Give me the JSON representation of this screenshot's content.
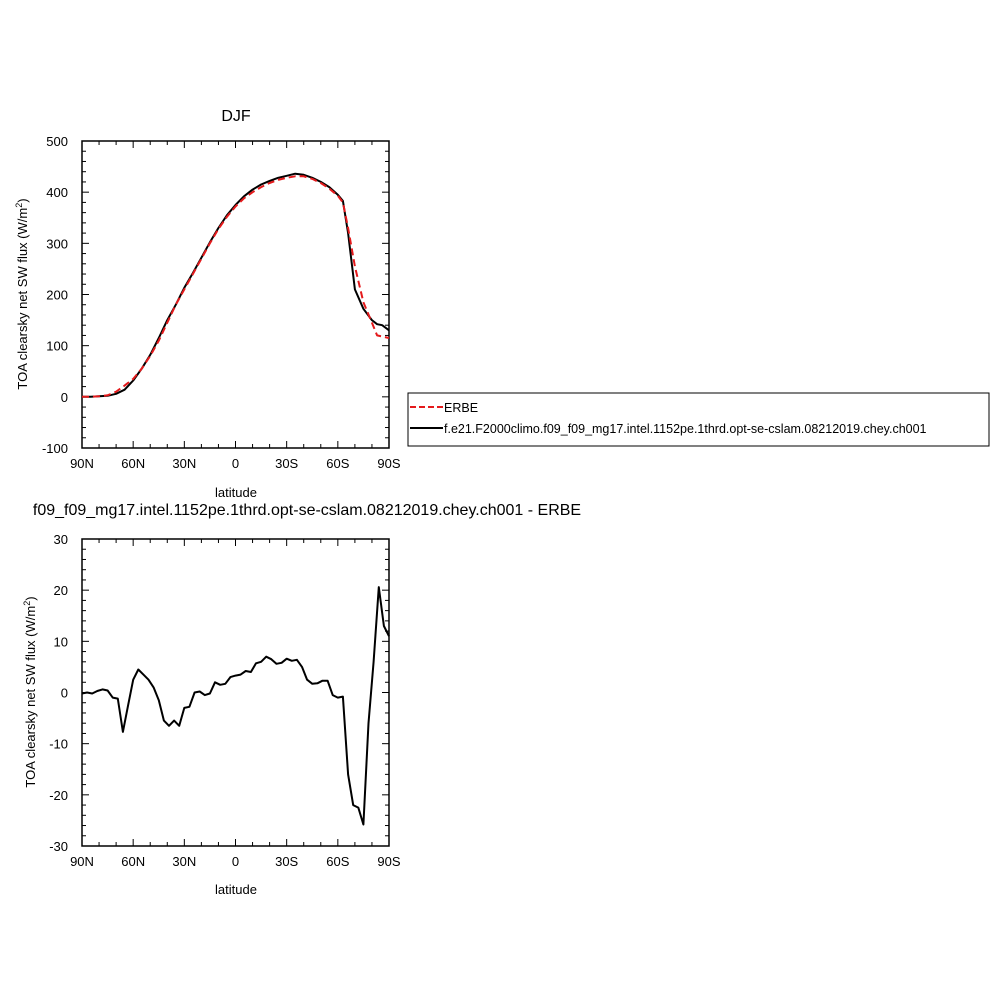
{
  "chart_data": [
    {
      "type": "line",
      "title": "DJF",
      "xlabel": "latitude",
      "ylabel": "TOA clearsky net SW flux (W/m",
      "ylabel_sup": "2",
      "ylabel_close": ")",
      "xlim": [
        -90,
        90
      ],
      "ylim": [
        -100,
        500
      ],
      "xticks": [
        {
          "value": -90,
          "label": "90N"
        },
        {
          "value": -60,
          "label": "60N"
        },
        {
          "value": -30,
          "label": "30N"
        },
        {
          "value": 0,
          "label": "0"
        },
        {
          "value": 30,
          "label": "30S"
        },
        {
          "value": 60,
          "label": "60S"
        },
        {
          "value": 90,
          "label": "90S"
        }
      ],
      "yticks": [
        -100,
        0,
        100,
        200,
        300,
        400,
        500
      ],
      "series": [
        {
          "name": "ERBE",
          "color": "#e41a1c",
          "dash": "dashed",
          "x": [
            -90,
            -85,
            -80,
            -75,
            -70,
            -65,
            -60,
            -55,
            -50,
            -45,
            -40,
            -35,
            -30,
            -25,
            -20,
            -15,
            -10,
            -5,
            0,
            5,
            10,
            15,
            20,
            25,
            30,
            35,
            40,
            45,
            50,
            55,
            60,
            63,
            66,
            70,
            75,
            80,
            83,
            86,
            90
          ],
          "y": [
            0,
            0,
            1,
            3,
            10,
            22,
            35,
            55,
            80,
            110,
            145,
            180,
            210,
            240,
            270,
            300,
            328,
            352,
            372,
            388,
            400,
            410,
            418,
            424,
            428,
            431,
            431,
            426,
            418,
            407,
            393,
            380,
            330,
            255,
            185,
            145,
            120,
            118,
            115
          ]
        },
        {
          "name": "f.e21.F2000climo.f09_f09_mg17.intel.1152pe.1thrd.opt-se-cslam.08212019.chey.ch001",
          "color": "#000000",
          "dash": "solid",
          "x": [
            -90,
            -85,
            -80,
            -75,
            -70,
            -65,
            -60,
            -55,
            -50,
            -45,
            -40,
            -35,
            -30,
            -25,
            -20,
            -15,
            -10,
            -5,
            0,
            5,
            10,
            15,
            20,
            25,
            30,
            35,
            40,
            45,
            50,
            55,
            60,
            63,
            66,
            70,
            75,
            80,
            83,
            86,
            90
          ],
          "y": [
            0,
            0,
            1,
            2,
            6,
            14,
            32,
            55,
            82,
            115,
            150,
            180,
            213,
            242,
            272,
            302,
            330,
            355,
            375,
            392,
            405,
            415,
            422,
            428,
            432,
            436,
            434,
            428,
            420,
            410,
            395,
            383,
            320,
            210,
            172,
            150,
            142,
            140,
            130
          ]
        }
      ]
    },
    {
      "type": "line",
      "title": "f09_f09_mg17.intel.1152pe.1thrd.opt-se-cslam.08212019.chey.ch001 - ERBE",
      "xlabel": "latitude",
      "ylabel": "TOA clearsky net SW flux (W/m",
      "ylabel_sup": "2",
      "ylabel_close": ")",
      "xlim": [
        -90,
        90
      ],
      "ylim": [
        -30,
        30
      ],
      "xticks": [
        {
          "value": -90,
          "label": "90N"
        },
        {
          "value": -60,
          "label": "60N"
        },
        {
          "value": -30,
          "label": "30N"
        },
        {
          "value": 0,
          "label": "0"
        },
        {
          "value": 30,
          "label": "30S"
        },
        {
          "value": 60,
          "label": "60S"
        },
        {
          "value": 90,
          "label": "90S"
        }
      ],
      "yticks": [
        -30,
        -20,
        -10,
        0,
        10,
        20,
        30
      ],
      "series": [
        {
          "color": "#000000",
          "dash": "solid",
          "x": [
            -90,
            -87,
            -84,
            -81,
            -78,
            -75,
            -72,
            -69,
            -66,
            -63,
            -60,
            -57,
            -54,
            -51,
            -48,
            -45,
            -42,
            -39,
            -36,
            -33,
            -30,
            -27,
            -24,
            -21,
            -18,
            -15,
            -12,
            -9,
            -6,
            -3,
            0,
            3,
            6,
            9,
            12,
            15,
            18,
            21,
            24,
            27,
            30,
            33,
            36,
            39,
            42,
            45,
            48,
            51,
            54,
            57,
            60,
            63,
            66,
            69,
            72,
            75,
            78,
            81,
            84,
            87,
            90
          ],
          "y": [
            -0.2,
            0,
            -0.2,
            0.3,
            0.6,
            0.4,
            -1.0,
            -1.2,
            -7.7,
            -2.5,
            2.5,
            4.5,
            3.5,
            2.5,
            1.0,
            -1.5,
            -5.5,
            -6.5,
            -5.5,
            -6.5,
            -3.0,
            -2.8,
            0,
            0.2,
            -0.5,
            -0.2,
            2.0,
            1.5,
            1.7,
            3.0,
            3.3,
            3.5,
            4.2,
            4.0,
            5.7,
            6.0,
            7.0,
            6.5,
            5.6,
            5.8,
            6.6,
            6.2,
            6.4,
            5.0,
            2.5,
            1.7,
            1.8,
            2.3,
            2.3,
            -0.5,
            -1.0,
            -0.8,
            -16.0,
            -22.0,
            -22.5,
            -25.8,
            -6.0,
            6.0,
            20.6,
            13.0,
            11.0
          ]
        }
      ]
    }
  ]
}
